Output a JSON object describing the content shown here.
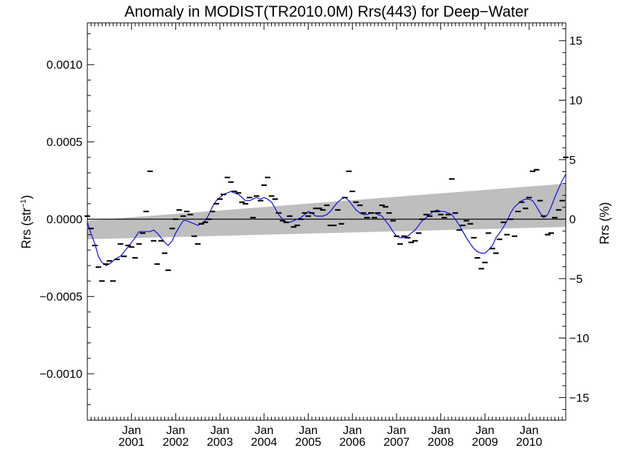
{
  "chart_data": {
    "type": "line",
    "title": "Anomaly in MODIST(TR2010.0M) Rrs(443) for Deep−Water",
    "ylabel": "Rrs (str",
    "ylabel_sup": "−1",
    "ylabel_close": ")",
    "y2label": "Rrs (%)",
    "ylim": [
      -0.0013,
      0.00127
    ],
    "y2lim": [
      -16.9,
      16.5
    ],
    "xlim": [
      2000.0,
      2010.83
    ],
    "yticks": [
      {
        "value": 0.001,
        "label": "0.0010"
      },
      {
        "value": 0.0005,
        "label": "0.0005"
      },
      {
        "value": 0.0,
        "label": "0.0000"
      },
      {
        "value": -0.0005,
        "label": "−0.0005"
      },
      {
        "value": -0.001,
        "label": "−0.0010"
      }
    ],
    "y2ticks": [
      {
        "value": 15,
        "label": "15"
      },
      {
        "value": 10,
        "label": "10"
      },
      {
        "value": 5,
        "label": "5"
      },
      {
        "value": 0,
        "label": "0"
      },
      {
        "value": -5,
        "label": "−5"
      },
      {
        "value": -10,
        "label": "−10"
      },
      {
        "value": -15,
        "label": "−15"
      }
    ],
    "xticks": [
      {
        "value": 2001.0,
        "month": "Jan",
        "year": "2001"
      },
      {
        "value": 2002.0,
        "month": "Jan",
        "year": "2002"
      },
      {
        "value": 2003.0,
        "month": "Jan",
        "year": "2003"
      },
      {
        "value": 2004.0,
        "month": "Jan",
        "year": "2004"
      },
      {
        "value": 2005.0,
        "month": "Jan",
        "year": "2005"
      },
      {
        "value": 2006.0,
        "month": "Jan",
        "year": "2006"
      },
      {
        "value": 2007.0,
        "month": "Jan",
        "year": "2007"
      },
      {
        "value": 2008.0,
        "month": "Jan",
        "year": "2008"
      },
      {
        "value": 2009.0,
        "month": "Jan",
        "year": "2009"
      },
      {
        "value": 2010.0,
        "month": "Jan",
        "year": "2010"
      }
    ],
    "zero_line": 0.0,
    "trend_band": {
      "x": [
        2000.0,
        2010.83
      ],
      "upper": [
        -1e-05,
        0.00023
      ],
      "lower": [
        -0.00013,
        -5e-05
      ]
    },
    "series": [
      {
        "kind": "monthly anomaly",
        "color": "#000000",
        "points": [
          [
            2000.0,
            2e-05
          ],
          [
            2000.08,
            -6e-05
          ],
          [
            2000.17,
            -0.00017
          ],
          [
            2000.25,
            -0.00031
          ],
          [
            2000.33,
            -0.0004
          ],
          [
            2000.42,
            -0.00029
          ],
          [
            2000.5,
            -0.00027
          ],
          [
            2000.58,
            -0.0004
          ],
          [
            2000.67,
            -0.00026
          ],
          [
            2000.75,
            -0.00016
          ],
          [
            2000.83,
            -0.00024
          ],
          [
            2000.92,
            -0.00017
          ],
          [
            2001.0,
            -0.00018
          ],
          [
            2001.08,
            -0.00025
          ],
          [
            2001.17,
            -0.00016
          ],
          [
            2001.25,
            -9e-05
          ],
          [
            2001.33,
            5e-05
          ],
          [
            2001.42,
            0.00031
          ],
          [
            2001.5,
            -0.00014
          ],
          [
            2001.58,
            -0.00029
          ],
          [
            2001.67,
            -0.00014
          ],
          [
            2001.75,
            -0.00022
          ],
          [
            2001.83,
            -0.00033
          ],
          [
            2001.92,
            -6e-05
          ],
          [
            2002.0,
            0.0
          ],
          [
            2002.08,
            6e-05
          ],
          [
            2002.17,
            2e-05
          ],
          [
            2002.25,
            5e-05
          ],
          [
            2002.33,
            3e-05
          ],
          [
            2002.42,
            -0.00011
          ],
          [
            2002.5,
            -0.00016
          ],
          [
            2002.58,
            -3e-05
          ],
          [
            2002.67,
            -2e-05
          ],
          [
            2002.75,
            0.0
          ],
          [
            2002.83,
            5e-05
          ],
          [
            2002.92,
            0.0001
          ],
          [
            2003.0,
            0.00013
          ],
          [
            2003.08,
            0.00016
          ],
          [
            2003.17,
            0.00027
          ],
          [
            2003.25,
            0.00024
          ],
          [
            2003.33,
            0.00018
          ],
          [
            2003.42,
            0.00017
          ],
          [
            2003.5,
            0.00011
          ],
          [
            2003.58,
            0.0001
          ],
          [
            2003.67,
            0.00014
          ],
          [
            2003.75,
            1e-05
          ],
          [
            2003.83,
            0.00015
          ],
          [
            2003.92,
            0.00012
          ],
          [
            2004.0,
            0.00022
          ],
          [
            2004.08,
            0.00027
          ],
          [
            2004.17,
            0.00015
          ],
          [
            2004.25,
            0.00013
          ],
          [
            2004.33,
            4e-05
          ],
          [
            2004.42,
            -1e-05
          ],
          [
            2004.5,
            -2e-05
          ],
          [
            2004.58,
            2e-05
          ],
          [
            2004.67,
            -5e-05
          ],
          [
            2004.75,
            -4e-05
          ],
          [
            2004.83,
            0.0
          ],
          [
            2004.92,
            4e-05
          ],
          [
            2005.0,
            2e-05
          ],
          [
            2005.08,
            4e-05
          ],
          [
            2005.17,
            7e-05
          ],
          [
            2005.25,
            7e-05
          ],
          [
            2005.33,
            6e-05
          ],
          [
            2005.42,
            9e-05
          ],
          [
            2005.5,
            -4e-05
          ],
          [
            2005.58,
            -4e-05
          ],
          [
            2005.67,
            6e-05
          ],
          [
            2005.75,
            -3e-05
          ],
          [
            2005.83,
            0.00014
          ],
          [
            2005.92,
            0.00031
          ],
          [
            2006.0,
            0.00018
          ],
          [
            2006.08,
            0.00011
          ],
          [
            2006.17,
            9e-05
          ],
          [
            2006.25,
            4e-05
          ],
          [
            2006.33,
            1e-05
          ],
          [
            2006.42,
            4e-05
          ],
          [
            2006.5,
            1e-05
          ],
          [
            2006.58,
            4e-05
          ],
          [
            2006.67,
            9e-05
          ],
          [
            2006.75,
            8e-05
          ],
          [
            2006.83,
            4e-05
          ],
          [
            2006.92,
            -1e-05
          ],
          [
            2007.0,
            -0.00011
          ],
          [
            2007.08,
            -0.00016
          ],
          [
            2007.17,
            -0.00011
          ],
          [
            2007.25,
            -0.00012
          ],
          [
            2007.33,
            -0.00015
          ],
          [
            2007.42,
            -0.00014
          ],
          [
            2007.5,
            -9e-05
          ],
          [
            2007.58,
            0.0
          ],
          [
            2007.67,
            3e-05
          ],
          [
            2007.75,
            2e-05
          ],
          [
            2007.83,
            5e-05
          ],
          [
            2007.92,
            5e-05
          ],
          [
            2008.0,
            3e-05
          ],
          [
            2008.08,
            1e-05
          ],
          [
            2008.17,
            3e-05
          ],
          [
            2008.25,
            0.00026
          ],
          [
            2008.33,
            4e-05
          ],
          [
            2008.42,
            -7e-05
          ],
          [
            2008.5,
            -4e-05
          ],
          [
            2008.58,
            -1e-05
          ],
          [
            2008.67,
            -3e-05
          ],
          [
            2008.75,
            -0.00012
          ],
          [
            2008.83,
            -0.00025
          ],
          [
            2008.92,
            -0.00032
          ],
          [
            2009.0,
            -0.00028
          ],
          [
            2009.08,
            -9e-05
          ],
          [
            2009.17,
            -0.00019
          ],
          [
            2009.25,
            -0.00022
          ],
          [
            2009.33,
            -0.00013
          ],
          [
            2009.42,
            -2e-05
          ],
          [
            2009.5,
            -0.0001
          ],
          [
            2009.58,
            0.0
          ],
          [
            2009.67,
            -0.00011
          ],
          [
            2009.75,
            5e-05
          ],
          [
            2009.83,
            0.00011
          ],
          [
            2009.92,
            7e-05
          ],
          [
            2010.0,
            0.00014
          ],
          [
            2010.08,
            0.00031
          ],
          [
            2010.17,
            0.00032
          ],
          [
            2010.25,
            0.00012
          ],
          [
            2010.33,
            2e-05
          ],
          [
            2010.42,
            -0.0001
          ],
          [
            2010.5,
            -9e-05
          ],
          [
            2010.58,
            1e-05
          ],
          [
            2010.67,
            6e-05
          ],
          [
            2010.75,
            0.00012
          ],
          [
            2010.83,
            0.0004
          ]
        ]
      },
      {
        "kind": "smoothed",
        "color": "#1212e6",
        "points": [
          [
            2000.0,
            -2e-05
          ],
          [
            2000.08,
            -9e-05
          ],
          [
            2000.17,
            -0.00016
          ],
          [
            2000.25,
            -0.00024
          ],
          [
            2000.33,
            -0.00028
          ],
          [
            2000.42,
            -0.0003
          ],
          [
            2000.5,
            -0.00029
          ],
          [
            2000.58,
            -0.00027
          ],
          [
            2000.67,
            -0.00025
          ],
          [
            2000.75,
            -0.00024
          ],
          [
            2000.83,
            -0.00021
          ],
          [
            2000.92,
            -0.00018
          ],
          [
            2001.0,
            -0.00015
          ],
          [
            2001.08,
            -0.00012
          ],
          [
            2001.17,
            -8e-05
          ],
          [
            2001.25,
            -8e-05
          ],
          [
            2001.33,
            -8e-05
          ],
          [
            2001.42,
            -8e-05
          ],
          [
            2001.5,
            -7e-05
          ],
          [
            2001.58,
            -9e-05
          ],
          [
            2001.67,
            -0.00012
          ],
          [
            2001.75,
            -0.00015
          ],
          [
            2001.83,
            -0.00017
          ],
          [
            2001.92,
            -0.00014
          ],
          [
            2002.0,
            -9e-05
          ],
          [
            2002.08,
            -5e-05
          ],
          [
            2002.17,
            -1e-05
          ],
          [
            2002.25,
            -1e-05
          ],
          [
            2002.33,
            -2e-05
          ],
          [
            2002.42,
            -3e-05
          ],
          [
            2002.5,
            -4e-05
          ],
          [
            2002.58,
            -3e-05
          ],
          [
            2002.67,
            -1e-05
          ],
          [
            2002.75,
            3e-05
          ],
          [
            2002.83,
            8e-05
          ],
          [
            2002.92,
            0.00012
          ],
          [
            2003.0,
            0.00014
          ],
          [
            2003.08,
            0.00016
          ],
          [
            2003.17,
            0.00017
          ],
          [
            2003.25,
            0.00018
          ],
          [
            2003.33,
            0.00017
          ],
          [
            2003.42,
            0.00016
          ],
          [
            2003.5,
            0.00014
          ],
          [
            2003.58,
            0.00012
          ],
          [
            2003.67,
            0.00012
          ],
          [
            2003.75,
            0.00013
          ],
          [
            2003.83,
            0.00014
          ],
          [
            2003.92,
            0.00013
          ],
          [
            2004.0,
            0.00014
          ],
          [
            2004.08,
            0.00013
          ],
          [
            2004.17,
            0.00011
          ],
          [
            2004.25,
            7e-05
          ],
          [
            2004.33,
            3e-05
          ],
          [
            2004.42,
            0.0
          ],
          [
            2004.5,
            -2e-05
          ],
          [
            2004.58,
            -2e-05
          ],
          [
            2004.67,
            -1e-05
          ],
          [
            2004.75,
            0.0
          ],
          [
            2004.83,
            1e-05
          ],
          [
            2004.92,
            3e-05
          ],
          [
            2005.0,
            5e-05
          ],
          [
            2005.08,
            4e-05
          ],
          [
            2005.17,
            2e-05
          ],
          [
            2005.25,
            2e-05
          ],
          [
            2005.33,
            2e-05
          ],
          [
            2005.42,
            3e-05
          ],
          [
            2005.5,
            5e-05
          ],
          [
            2005.58,
            8e-05
          ],
          [
            2005.67,
            0.00011
          ],
          [
            2005.75,
            0.00013
          ],
          [
            2005.83,
            0.00014
          ],
          [
            2005.92,
            0.00012
          ],
          [
            2006.0,
            9e-05
          ],
          [
            2006.08,
            6e-05
          ],
          [
            2006.17,
            4e-05
          ],
          [
            2006.25,
            3e-05
          ],
          [
            2006.33,
            3e-05
          ],
          [
            2006.42,
            4e-05
          ],
          [
            2006.5,
            4e-05
          ],
          [
            2006.58,
            3e-05
          ],
          [
            2006.67,
            2e-05
          ],
          [
            2006.75,
            -1e-05
          ],
          [
            2006.83,
            -4e-05
          ],
          [
            2006.92,
            -8e-05
          ],
          [
            2007.0,
            -0.00011
          ],
          [
            2007.08,
            -0.00012
          ],
          [
            2007.17,
            -0.00012
          ],
          [
            2007.25,
            -0.00011
          ],
          [
            2007.33,
            -9e-05
          ],
          [
            2007.42,
            -7e-05
          ],
          [
            2007.5,
            -4e-05
          ],
          [
            2007.58,
            -1e-05
          ],
          [
            2007.67,
            1e-05
          ],
          [
            2007.75,
            3e-05
          ],
          [
            2007.83,
            5e-05
          ],
          [
            2007.92,
            6e-05
          ],
          [
            2008.0,
            5e-05
          ],
          [
            2008.08,
            5e-05
          ],
          [
            2008.17,
            4e-05
          ],
          [
            2008.25,
            3e-05
          ],
          [
            2008.33,
            0.0
          ],
          [
            2008.42,
            -4e-05
          ],
          [
            2008.5,
            -8e-05
          ],
          [
            2008.58,
            -0.00012
          ],
          [
            2008.67,
            -0.00016
          ],
          [
            2008.75,
            -0.00019
          ],
          [
            2008.83,
            -0.00021
          ],
          [
            2008.92,
            -0.00022
          ],
          [
            2009.0,
            -0.00022
          ],
          [
            2009.08,
            -0.0002
          ],
          [
            2009.17,
            -0.00017
          ],
          [
            2009.25,
            -0.00012
          ],
          [
            2009.33,
            -9e-05
          ],
          [
            2009.42,
            -5e-05
          ],
          [
            2009.5,
            -1e-05
          ],
          [
            2009.58,
            4e-05
          ],
          [
            2009.67,
            8e-05
          ],
          [
            2009.75,
            0.0001
          ],
          [
            2009.83,
            0.00012
          ],
          [
            2009.92,
            0.00013
          ],
          [
            2010.0,
            0.00013
          ],
          [
            2010.08,
            0.00012
          ],
          [
            2010.17,
            8e-05
          ],
          [
            2010.25,
            4e-05
          ],
          [
            2010.33,
            1e-05
          ],
          [
            2010.42,
            3e-05
          ],
          [
            2010.5,
            8e-05
          ],
          [
            2010.58,
            0.00014
          ],
          [
            2010.67,
            0.0002
          ],
          [
            2010.75,
            0.00025
          ],
          [
            2010.83,
            0.00029
          ]
        ]
      }
    ]
  }
}
